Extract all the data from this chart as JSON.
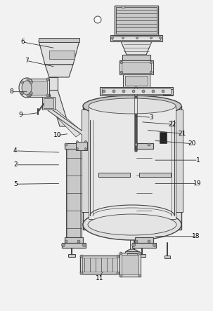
{
  "bg_color": "#f2f2f2",
  "line_color": "#444444",
  "dark_color": "#222222",
  "light_fill": "#e0e0e0",
  "mid_fill": "#c8c8c8",
  "dark_fill": "#999999",
  "white_fill": "#f8f8f8",
  "very_dark": "#555555",
  "labels_pos": {
    "6": [
      0.105,
      0.135,
      0.26,
      0.155
    ],
    "7": [
      0.125,
      0.195,
      0.26,
      0.215
    ],
    "8": [
      0.052,
      0.295,
      0.135,
      0.295
    ],
    "9": [
      0.098,
      0.37,
      0.185,
      0.362
    ],
    "10": [
      0.268,
      0.435,
      0.325,
      0.43
    ],
    "4": [
      0.072,
      0.485,
      0.285,
      0.49
    ],
    "2": [
      0.072,
      0.53,
      0.285,
      0.53
    ],
    "5": [
      0.072,
      0.592,
      0.285,
      0.59
    ],
    "11": [
      0.468,
      0.895,
      0.485,
      0.868
    ],
    "1": [
      0.93,
      0.515,
      0.72,
      0.515
    ],
    "19": [
      0.925,
      0.59,
      0.72,
      0.59
    ],
    "18": [
      0.92,
      0.76,
      0.72,
      0.76
    ],
    "20": [
      0.9,
      0.462,
      0.72,
      0.452
    ],
    "21": [
      0.855,
      0.43,
      0.685,
      0.418
    ],
    "22": [
      0.81,
      0.4,
      0.66,
      0.392
    ],
    "3": [
      0.71,
      0.378,
      0.625,
      0.372
    ]
  }
}
